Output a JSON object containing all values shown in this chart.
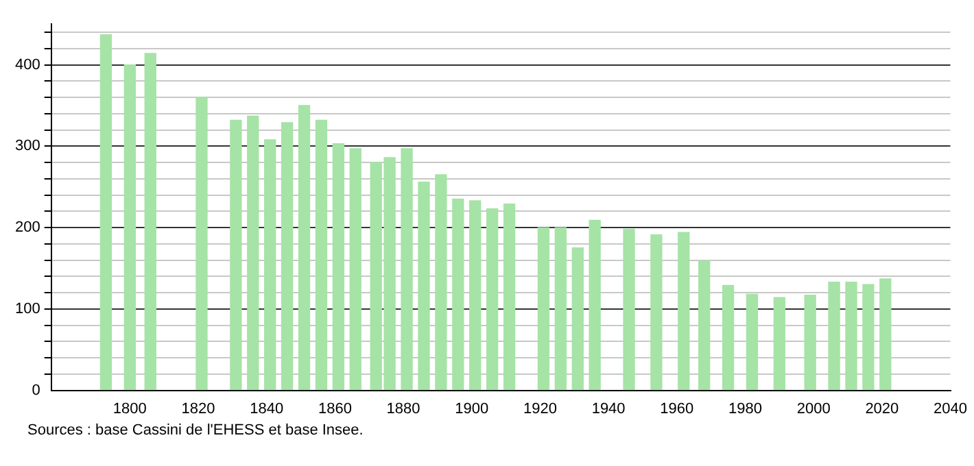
{
  "chart_data": {
    "type": "bar",
    "x": [
      1793,
      1800,
      1806,
      1821,
      1831,
      1836,
      1841,
      1846,
      1851,
      1856,
      1861,
      1866,
      1872,
      1876,
      1881,
      1886,
      1891,
      1896,
      1901,
      1906,
      1911,
      1921,
      1926,
      1931,
      1936,
      1946,
      1954,
      1962,
      1968,
      1975,
      1982,
      1990,
      1999,
      2006,
      2011,
      2016,
      2021
    ],
    "values": [
      437,
      400,
      414,
      360,
      332,
      337,
      308,
      329,
      350,
      332,
      303,
      297,
      280,
      286,
      297,
      256,
      265,
      235,
      233,
      223,
      229,
      200,
      200,
      175,
      209,
      198,
      191,
      194,
      159,
      129,
      118,
      114,
      117,
      133,
      133,
      130,
      137
    ],
    "color": "#a6e3a6",
    "xlim": [
      1777,
      2040
    ],
    "xticks": [
      1800,
      1820,
      1840,
      1860,
      1880,
      1900,
      1920,
      1940,
      1960,
      1980,
      2000,
      2020,
      2040
    ],
    "ylim": [
      0,
      450
    ],
    "yticks": [
      0,
      {
        "value": 20,
        "label": null
      },
      {
        "value": 40,
        "label": null
      },
      {
        "value": 60,
        "label": null
      },
      {
        "value": 80,
        "label": null
      },
      100,
      {
        "value": 120,
        "label": null
      },
      {
        "value": 140,
        "label": null
      },
      {
        "value": 160,
        "label": null
      },
      {
        "value": 180,
        "label": null
      },
      200,
      {
        "value": 220,
        "label": null
      },
      {
        "value": 240,
        "label": null
      },
      {
        "value": 260,
        "label": null
      },
      {
        "value": 280,
        "label": null
      },
      300,
      {
        "value": 320,
        "label": null
      },
      {
        "value": 340,
        "label": null
      },
      {
        "value": 360,
        "label": null
      },
      {
        "value": 380,
        "label": null
      },
      400,
      {
        "value": 420,
        "label": null
      },
      {
        "value": 440,
        "label": null
      }
    ],
    "grid": "y",
    "legend": false,
    "annotations": [
      "Sources : base Cassini de l'EHESS et base Insee."
    ]
  }
}
